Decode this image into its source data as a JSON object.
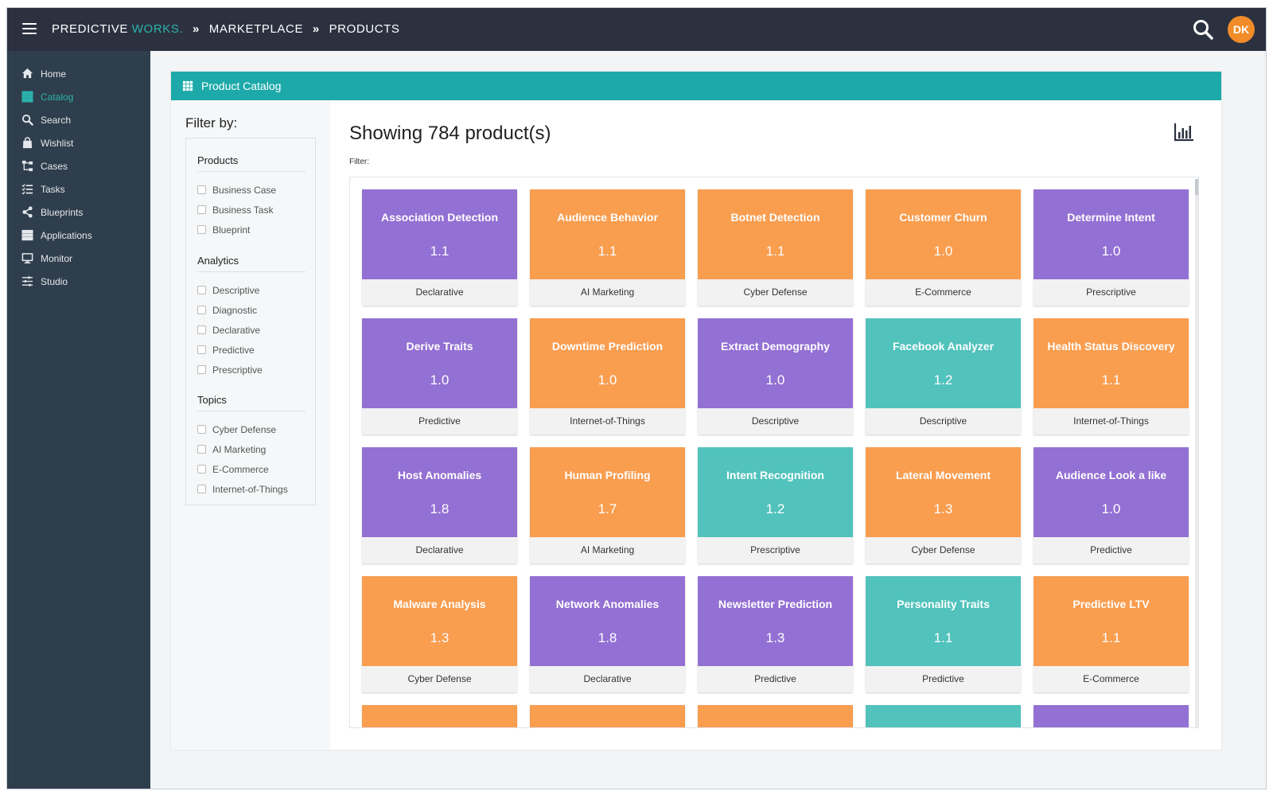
{
  "topbar": {
    "brand_main": "PREDICTIVE",
    "brand_accent": "WORKS.",
    "crumbs": [
      "MARKETPLACE",
      "PRODUCTS"
    ],
    "avatar_initials": "DK"
  },
  "sidebar": {
    "items": [
      {
        "label": "Home",
        "icon": "home-icon"
      },
      {
        "label": "Catalog",
        "icon": "grid-icon",
        "active": true
      },
      {
        "label": "Search",
        "icon": "search-icon"
      },
      {
        "label": "Wishlist",
        "icon": "bag-icon"
      },
      {
        "label": "Cases",
        "icon": "sitemap-icon"
      },
      {
        "label": "Tasks",
        "icon": "tasks-icon"
      },
      {
        "label": "Blueprints",
        "icon": "share-icon"
      },
      {
        "label": "Applications",
        "icon": "stack-icon"
      },
      {
        "label": "Monitor",
        "icon": "monitor-icon"
      },
      {
        "label": "Studio",
        "icon": "sliders-icon"
      }
    ]
  },
  "card": {
    "title": "Product Catalog"
  },
  "filters": {
    "title": "Filter by:",
    "groups": [
      {
        "title": "Products",
        "items": [
          "Business Case",
          "Business Task",
          "Blueprint"
        ]
      },
      {
        "title": "Analytics",
        "items": [
          "Descriptive",
          "Diagnostic",
          "Declarative",
          "Predictive",
          "Prescriptive"
        ]
      },
      {
        "title": "Topics",
        "items": [
          "Cyber Defense",
          "AI Marketing",
          "E-Commerce",
          "Internet-of-Things"
        ]
      }
    ]
  },
  "main": {
    "showing": "Showing 784 product(s)",
    "filter_label": "Filter:"
  },
  "colors": {
    "purple": "#9370d3",
    "orange": "#f99d4f",
    "teal": "#51c2bc",
    "header": "#1da9a9",
    "sidebar": "#2f3e4c",
    "topbar": "#2c3140",
    "avatar": "#f28c28"
  },
  "products": [
    {
      "name": "Association Detection",
      "version": "1.1",
      "category": "Declarative",
      "color": "purple"
    },
    {
      "name": "Audience Behavior",
      "version": "1.1",
      "category": "AI Marketing",
      "color": "orange"
    },
    {
      "name": "Botnet Detection",
      "version": "1.1",
      "category": "Cyber Defense",
      "color": "orange"
    },
    {
      "name": "Customer Churn",
      "version": "1.0",
      "category": "E-Commerce",
      "color": "orange"
    },
    {
      "name": "Determine Intent",
      "version": "1.0",
      "category": "Prescriptive",
      "color": "purple"
    },
    {
      "name": "Derive Traits",
      "version": "1.0",
      "category": "Predictive",
      "color": "purple"
    },
    {
      "name": "Downtime Prediction",
      "version": "1.0",
      "category": "Internet-of-Things",
      "color": "orange"
    },
    {
      "name": "Extract Demography",
      "version": "1.0",
      "category": "Descriptive",
      "color": "purple"
    },
    {
      "name": "Facebook Analyzer",
      "version": "1.2",
      "category": "Descriptive",
      "color": "teal"
    },
    {
      "name": "Health Status Discovery",
      "version": "1.1",
      "category": "Internet-of-Things",
      "color": "orange"
    },
    {
      "name": "Host Anomalies",
      "version": "1.8",
      "category": "Declarative",
      "color": "purple"
    },
    {
      "name": "Human Profiling",
      "version": "1.7",
      "category": "AI Marketing",
      "color": "orange"
    },
    {
      "name": "Intent Recognition",
      "version": "1.2",
      "category": "Prescriptive",
      "color": "teal"
    },
    {
      "name": "Lateral Movement",
      "version": "1.3",
      "category": "Cyber Defense",
      "color": "orange"
    },
    {
      "name": "Audience Look a like",
      "version": "1.0",
      "category": "Predictive",
      "color": "purple"
    },
    {
      "name": "Malware Analysis",
      "version": "1.3",
      "category": "Cyber Defense",
      "color": "orange"
    },
    {
      "name": "Network Anomalies",
      "version": "1.8",
      "category": "Declarative",
      "color": "purple"
    },
    {
      "name": "Newsletter Prediction",
      "version": "1.3",
      "category": "Predictive",
      "color": "purple"
    },
    {
      "name": "Personality Traits",
      "version": "1.1",
      "category": "Predictive",
      "color": "teal"
    },
    {
      "name": "Predictive LTV",
      "version": "1.1",
      "category": "E-Commerce",
      "color": "orange"
    }
  ],
  "partial_row_colors": [
    "orange",
    "orange",
    "orange",
    "teal",
    "purple"
  ]
}
